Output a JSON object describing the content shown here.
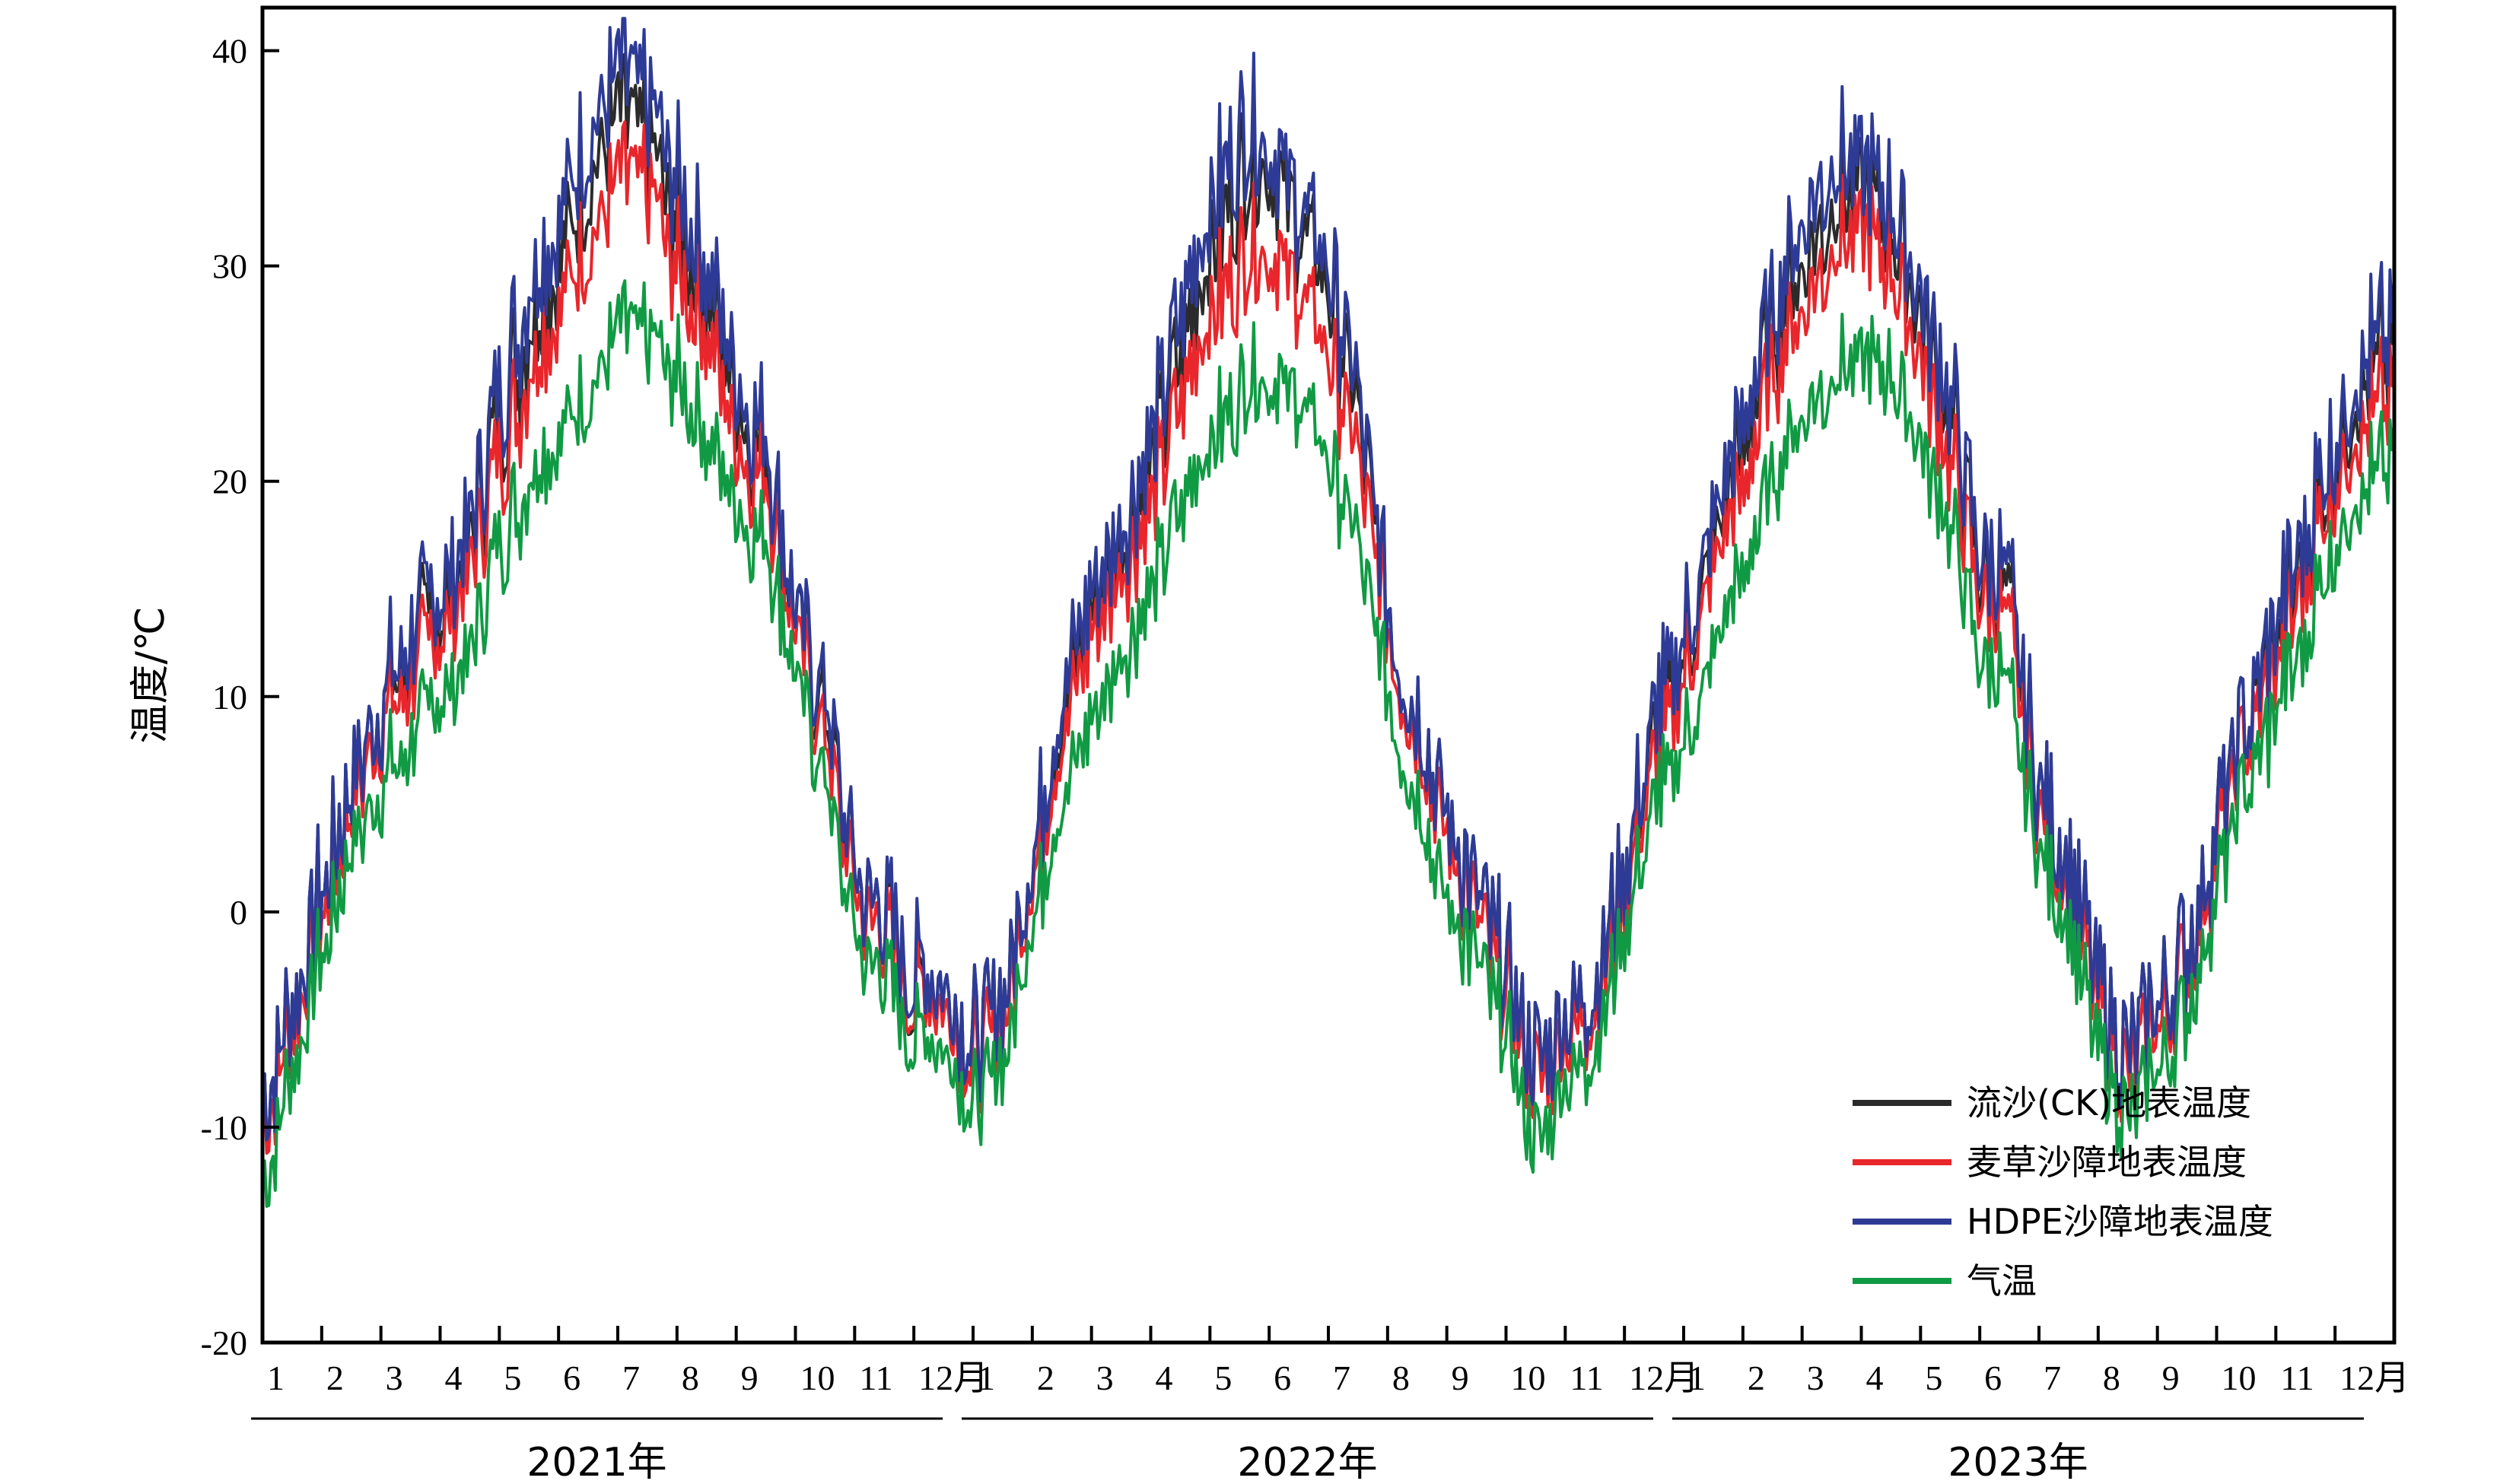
{
  "chart_data": {
    "type": "line",
    "ylabel": "温度/℃",
    "ylim": [
      -20,
      42
    ],
    "yticks": [
      "-20",
      "-10",
      "0",
      "10",
      "20",
      "30",
      "40"
    ],
    "grid": false,
    "legend_position": "bottom-right",
    "x_unit": "月",
    "years": [
      {
        "label": "2021年",
        "months": [
          "1",
          "2",
          "3",
          "4",
          "5",
          "6",
          "7",
          "8",
          "9",
          "10",
          "11",
          "12"
        ]
      },
      {
        "label": "2022年",
        "months": [
          "1",
          "2",
          "3",
          "4",
          "5",
          "6",
          "7",
          "8",
          "9",
          "10",
          "11",
          "12"
        ]
      },
      {
        "label": "2023年",
        "months": [
          "1",
          "2",
          "3",
          "4",
          "5",
          "6",
          "7",
          "8",
          "9",
          "10",
          "11",
          "12"
        ]
      }
    ],
    "series_note_x": "x values are month positions (1.0 = start of January) across 3 years; 37 = end of Dec 2023",
    "x": [
      1.0,
      1.5,
      2.0,
      2.5,
      3.0,
      3.5,
      4.0,
      4.5,
      5.0,
      5.5,
      6.0,
      6.5,
      7.0,
      7.5,
      8.0,
      8.5,
      9.0,
      9.5,
      10.0,
      10.5,
      11.0,
      11.5,
      12.0,
      12.5,
      13.0,
      13.5,
      14.0,
      14.5,
      15.0,
      15.5,
      16.0,
      16.5,
      17.0,
      17.5,
      18.0,
      18.5,
      19.0,
      19.5,
      20.0,
      20.5,
      21.0,
      21.5,
      22.0,
      22.5,
      23.0,
      23.5,
      24.0,
      24.5,
      25.0,
      25.5,
      26.0,
      26.5,
      27.0,
      27.5,
      28.0,
      28.5,
      29.0,
      29.5,
      30.0,
      30.5,
      31.0,
      31.5,
      32.0,
      32.5,
      33.0,
      33.5,
      34.0,
      34.5,
      35.0,
      35.5,
      36.0,
      36.5,
      37.0
    ],
    "series": [
      {
        "name": "流沙(CK)地表温度",
        "color": "#2b2b2b",
        "values": [
          -8,
          -3,
          2,
          7,
          11,
          13,
          15,
          18,
          24,
          28,
          31,
          35,
          38,
          37,
          33,
          30,
          25,
          22,
          15,
          10,
          3,
          1,
          -3,
          -2,
          -5,
          -3,
          4,
          10,
          15,
          18,
          22,
          27,
          32,
          35,
          36,
          33,
          30,
          24,
          15,
          10,
          5,
          2,
          -2,
          -6,
          -4,
          -2,
          3,
          9,
          13,
          18,
          23,
          28,
          31,
          34,
          35,
          33,
          29,
          24,
          17,
          15,
          7,
          3,
          -2,
          -6,
          -3,
          -1,
          5,
          10,
          13,
          18,
          22,
          26,
          27
        ]
      },
      {
        "name": "麦草沙障地表温度",
        "color": "#e8262b",
        "values": [
          -9,
          -4,
          1,
          6,
          10,
          12,
          14,
          17,
          22,
          26,
          29,
          32,
          35,
          35,
          31,
          28,
          23,
          21,
          14,
          9,
          2,
          0,
          -3,
          -3,
          -6,
          -4,
          3,
          9,
          14,
          17,
          20,
          25,
          29,
          31,
          32,
          30,
          27,
          22,
          14,
          9,
          4,
          1,
          -3,
          -7,
          -5,
          -3,
          2,
          8,
          12,
          17,
          21,
          26,
          29,
          32,
          33,
          31,
          27,
          22,
          16,
          14,
          6,
          2,
          -3,
          -7,
          -4,
          -2,
          4,
          9,
          12,
          17,
          21,
          24,
          25
        ]
      },
      {
        "name": "HDPE沙障地表温度",
        "color": "#2e3b96",
        "values": [
          -8,
          -3,
          2,
          7,
          11,
          14,
          16,
          19,
          25,
          30,
          33,
          37,
          40,
          39,
          35,
          31,
          26,
          23,
          15,
          11,
          3,
          1,
          -2,
          -2,
          -5,
          -3,
          4,
          11,
          16,
          19,
          23,
          29,
          34,
          37,
          37,
          34,
          31,
          25,
          15,
          10,
          5,
          2,
          -2,
          -6,
          -4,
          -2,
          3,
          10,
          14,
          19,
          24,
          29,
          33,
          36,
          36,
          34,
          30,
          25,
          18,
          16,
          7,
          3,
          -2,
          -6,
          -3,
          -1,
          5,
          10,
          14,
          19,
          23,
          27,
          28
        ]
      },
      {
        "name": "气温",
        "color": "#109a43",
        "values": [
          -12,
          -6,
          -1,
          4,
          7,
          9,
          11,
          13,
          18,
          21,
          23,
          25,
          28,
          28,
          26,
          23,
          20,
          18,
          12,
          7,
          0,
          -2,
          -5,
          -5,
          -8,
          -6,
          1,
          6,
          10,
          13,
          16,
          20,
          23,
          25,
          26,
          25,
          22,
          18,
          11,
          6,
          1,
          -1,
          -5,
          -10,
          -7,
          -5,
          0,
          6,
          9,
          13,
          17,
          21,
          24,
          26,
          27,
          26,
          23,
          19,
          13,
          11,
          4,
          0,
          -5,
          -9,
          -6,
          -4,
          2,
          7,
          10,
          14,
          18,
          21,
          22
        ]
      }
    ]
  }
}
